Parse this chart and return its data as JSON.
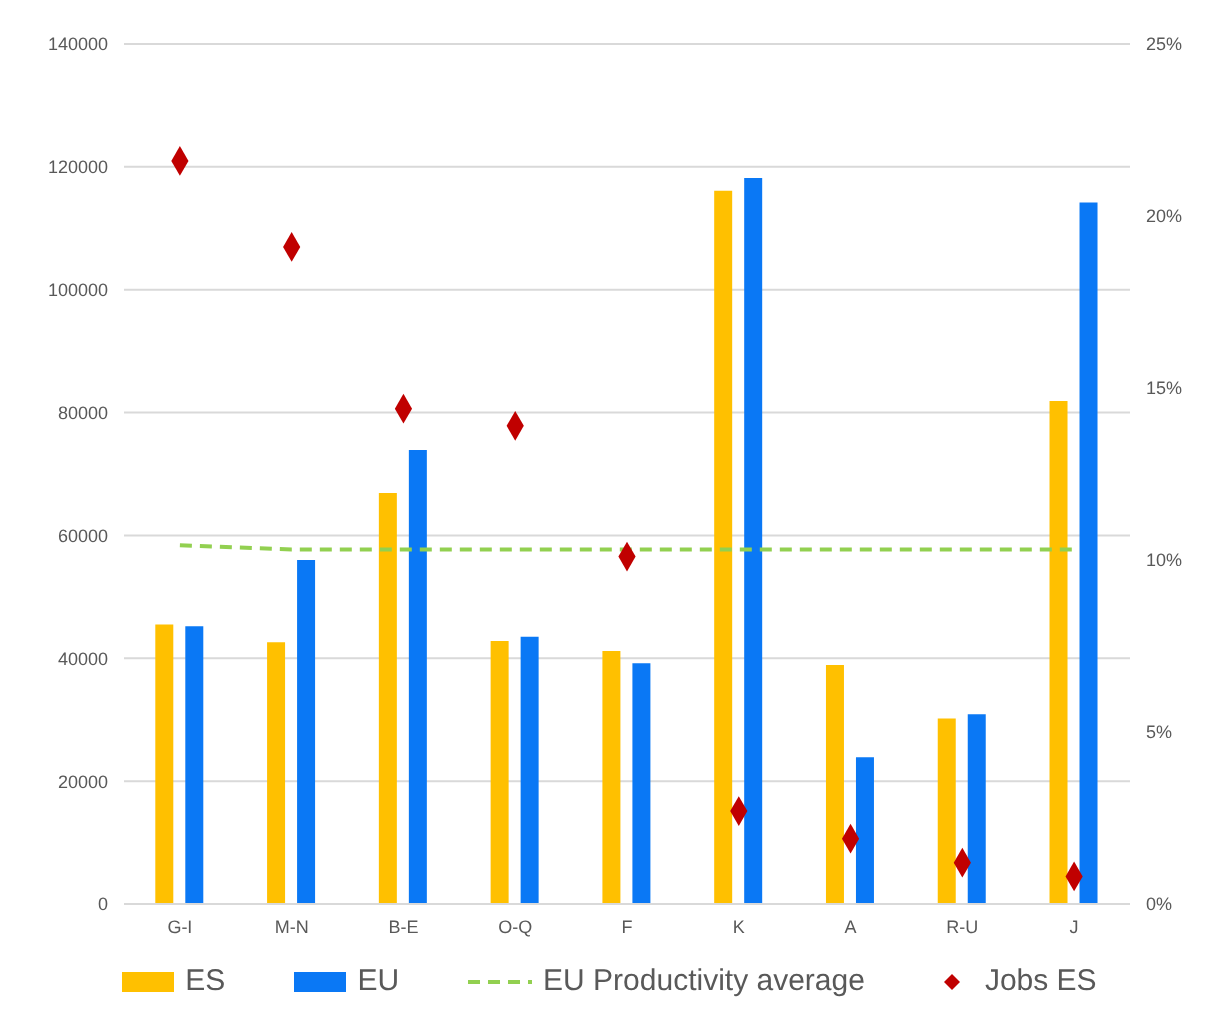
{
  "chart_data": {
    "type": "bar",
    "categories": [
      "G-I",
      "M-N",
      "B-E",
      "O-Q",
      "F",
      "K",
      "A",
      "R-U",
      "J"
    ],
    "series": [
      {
        "name": "ES",
        "color": "#ffc000",
        "values": [
          45500,
          42600,
          66900,
          42800,
          41200,
          116100,
          38900,
          30200,
          81900
        ]
      },
      {
        "name": "EU",
        "color": "#0a78f5",
        "values": [
          45200,
          56000,
          73900,
          43500,
          39200,
          118200,
          23900,
          30900,
          114200
        ]
      },
      {
        "name": "EU Productivity average",
        "type": "line",
        "color": "#92d050",
        "line_style": "dashed",
        "marker": "none",
        "values": [
          58400,
          57700,
          57700,
          57700,
          57700,
          57700,
          57700,
          57700,
          57700
        ]
      },
      {
        "name": "Jobs ES",
        "type": "scatter",
        "axis": "y2",
        "marker": "diamond",
        "color": "#c00000",
        "values": [
          21.6,
          19.1,
          14.4,
          13.9,
          10.1,
          2.7,
          1.9,
          1.2,
          0.8
        ]
      }
    ],
    "ylim": [
      0,
      140000
    ],
    "yticks": [
      0,
      20000,
      40000,
      60000,
      80000,
      100000,
      120000,
      140000
    ],
    "y2lim": [
      0,
      25
    ],
    "y2ticks": [
      {
        "value": 0,
        "label": "0%"
      },
      {
        "value": 5,
        "label": "5%"
      },
      {
        "value": 10,
        "label": "10%"
      },
      {
        "value": 15,
        "label": "15%"
      },
      {
        "value": 20,
        "label": "20%"
      },
      {
        "value": 25,
        "label": "25%"
      }
    ],
    "grid": "y",
    "legend": "bottom"
  }
}
